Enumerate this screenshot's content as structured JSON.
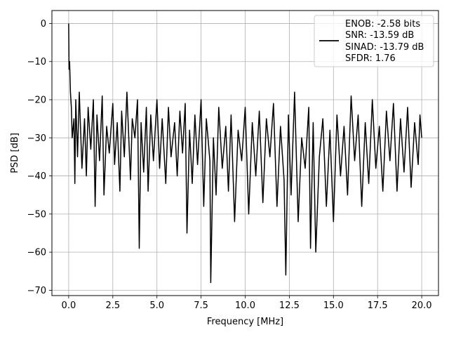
{
  "chart_data": {
    "type": "line",
    "title": "",
    "xlabel": "Frequency [MHz]",
    "ylabel": "PSD [dB]",
    "xlim": [
      -0.95,
      20.95
    ],
    "ylim": [
      -71.4,
      3.4
    ],
    "xticks": [
      0.0,
      2.5,
      5.0,
      7.5,
      10.0,
      12.5,
      15.0,
      17.5,
      20.0
    ],
    "xtick_labels": [
      "0.0",
      "2.5",
      "5.0",
      "7.5",
      "10.0",
      "12.5",
      "15.0",
      "17.5",
      "20.0"
    ],
    "yticks": [
      0,
      -10,
      -20,
      -30,
      -40,
      -50,
      -60,
      -70
    ],
    "ytick_labels": [
      "0",
      "−10",
      "−20",
      "−30",
      "−40",
      "−50",
      "−60",
      "−70"
    ],
    "grid": true,
    "legend_position": "top-right",
    "legend_lines": [
      "ENOB: -2.58 bits",
      "SNR: -13.59 dB",
      "SINAD: -13.79 dB",
      "SFDR: 1.76"
    ],
    "series": [
      {
        "color": "#000000",
        "description": "noisy PSD trace (approximate), 0 to 20 MHz",
        "x": [
          0.0,
          0.02,
          0.05,
          0.1,
          0.15,
          0.2,
          0.3,
          0.35,
          0.4,
          0.5,
          0.6,
          0.75,
          0.9,
          1.0,
          1.1,
          1.25,
          1.4,
          1.5,
          1.6,
          1.75,
          1.9,
          2.0,
          2.15,
          2.3,
          2.5,
          2.6,
          2.75,
          2.9,
          3.0,
          3.15,
          3.3,
          3.5,
          3.6,
          3.75,
          3.9,
          4.0,
          4.1,
          4.25,
          4.4,
          4.5,
          4.65,
          4.8,
          5.0,
          5.15,
          5.3,
          5.5,
          5.65,
          5.8,
          6.0,
          6.15,
          6.3,
          6.45,
          6.6,
          6.7,
          6.85,
          7.0,
          7.15,
          7.3,
          7.5,
          7.65,
          7.8,
          8.0,
          8.05,
          8.2,
          8.35,
          8.5,
          8.7,
          8.9,
          9.05,
          9.2,
          9.4,
          9.6,
          9.8,
          10.0,
          10.2,
          10.4,
          10.6,
          10.8,
          11.0,
          11.2,
          11.4,
          11.6,
          11.8,
          12.0,
          12.2,
          12.3,
          12.45,
          12.6,
          12.8,
          13.0,
          13.2,
          13.4,
          13.6,
          13.7,
          13.85,
          14.0,
          14.2,
          14.4,
          14.6,
          14.8,
          15.0,
          15.2,
          15.4,
          15.6,
          15.8,
          16.0,
          16.2,
          16.4,
          16.6,
          16.8,
          17.0,
          17.2,
          17.4,
          17.6,
          17.8,
          18.0,
          18.2,
          18.4,
          18.6,
          18.8,
          19.0,
          19.2,
          19.4,
          19.6,
          19.8,
          19.9,
          20.0
        ],
        "y": [
          0,
          -12,
          -10,
          -18,
          -22,
          -30,
          -25,
          -42,
          -20,
          -35,
          -18,
          -38,
          -25,
          -40,
          -22,
          -33,
          -20,
          -48,
          -24,
          -36,
          -19,
          -45,
          -27,
          -34,
          -21,
          -37,
          -26,
          -44,
          -23,
          -35,
          -18,
          -41,
          -25,
          -30,
          -20,
          -59,
          -26,
          -39,
          -22,
          -44,
          -24,
          -36,
          -20,
          -38,
          -25,
          -42,
          -22,
          -35,
          -26,
          -40,
          -23,
          -34,
          -21,
          -55,
          -28,
          -42,
          -24,
          -37,
          -20,
          -48,
          -25,
          -36,
          -68,
          -30,
          -45,
          -22,
          -38,
          -27,
          -44,
          -24,
          -52,
          -28,
          -36,
          -22,
          -50,
          -26,
          -40,
          -23,
          -47,
          -25,
          -35,
          -21,
          -48,
          -27,
          -41,
          -66,
          -24,
          -45,
          -18,
          -52,
          -30,
          -38,
          -22,
          -59,
          -26,
          -60,
          -35,
          -25,
          -48,
          -28,
          -52,
          -24,
          -40,
          -27,
          -45,
          -19,
          -36,
          -24,
          -48,
          -26,
          -42,
          -20,
          -38,
          -27,
          -44,
          -23,
          -36,
          -21,
          -44,
          -25,
          -39,
          -22,
          -43,
          -26,
          -37,
          -24,
          -30
        ]
      }
    ]
  }
}
